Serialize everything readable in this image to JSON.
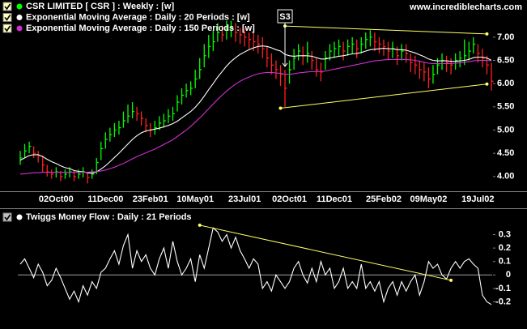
{
  "watermark": "www.incrediblecharts.com",
  "chart_data": [
    {
      "type": "ohlc",
      "categories": [
        null,
        null,
        null,
        null,
        null,
        null,
        null,
        null,
        "02Oct00",
        null,
        null,
        null,
        null,
        null,
        null,
        null,
        null,
        null,
        null,
        "11Dec00",
        null,
        null,
        null,
        null,
        null,
        null,
        null,
        null,
        null,
        "23Feb01",
        null,
        null,
        null,
        null,
        null,
        null,
        null,
        null,
        null,
        "10May01",
        null,
        null,
        null,
        null,
        null,
        null,
        null,
        null,
        null,
        null,
        "23Jul01",
        null,
        null,
        null,
        null,
        null,
        null,
        null,
        null,
        null,
        "02Oct01",
        null,
        null,
        null,
        null,
        null,
        null,
        null,
        null,
        null,
        "11Dec01",
        null,
        null,
        null,
        null,
        null,
        null,
        null,
        null,
        null,
        null,
        "25Feb02",
        null,
        null,
        null,
        null,
        null,
        null,
        null,
        null,
        null,
        "09May02",
        null,
        null,
        null,
        null,
        null,
        null,
        null,
        null,
        null,
        null,
        "19Jul02",
        null,
        null,
        null
      ],
      "ylim": [
        3.7,
        7.8
      ],
      "yticks": [
        {
          "value": 4,
          "label": "4.00"
        },
        {
          "value": 4.5,
          "label": "4.50"
        },
        {
          "value": 5,
          "label": "5.00"
        },
        {
          "value": 5.5,
          "label": "5.50"
        },
        {
          "value": 6,
          "label": "6.00"
        },
        {
          "value": 6.5,
          "label": "6.50"
        },
        {
          "value": 7,
          "label": "7.00"
        }
      ],
      "up_color": "#00ff00",
      "down_color": "#ff2020",
      "series": [
        {
          "name": "CSR LIMITED  [ CSR ] : Weekly : [w]",
          "color": "#00ff00",
          "high": [
            4.55,
            4.7,
            4.75,
            4.65,
            4.55,
            4.45,
            4.25,
            4.15,
            4.2,
            4.12,
            4.15,
            4.2,
            4.12,
            4.15,
            4.2,
            4.1,
            4.15,
            4.4,
            4.75,
            4.95,
            5.05,
            5.15,
            5.2,
            5.4,
            5.55,
            5.6,
            5.5,
            5.4,
            5.25,
            5.15,
            5.2,
            5.3,
            5.35,
            5.45,
            5.5,
            5.75,
            5.9,
            6.0,
            6.05,
            6.3,
            6.55,
            6.85,
            7.05,
            7.15,
            7.3,
            7.25,
            7.35,
            7.35,
            7.3,
            7.2,
            7.2,
            7.1,
            7.1,
            7.05,
            7.0,
            6.8,
            6.65,
            6.5,
            6.4,
            6.3,
            6.5,
            6.75,
            6.85,
            6.8,
            6.9,
            6.7,
            6.55,
            6.45,
            6.7,
            6.85,
            6.9,
            6.95,
            6.9,
            6.95,
            7.0,
            6.95,
            7.0,
            7.1,
            7.15,
            7.1,
            7.0,
            6.95,
            6.9,
            6.9,
            6.8,
            6.85,
            6.85,
            6.65,
            6.6,
            6.5,
            6.45,
            6.35,
            6.4,
            6.55,
            6.65,
            6.6,
            6.55,
            6.65,
            6.7,
            6.95,
            6.9,
            7.0,
            6.85,
            6.75,
            6.6,
            6.45
          ],
          "low": [
            4.25,
            4.4,
            4.5,
            4.4,
            4.3,
            4.1,
            4.0,
            3.95,
            3.98,
            3.9,
            3.95,
            3.98,
            3.9,
            3.95,
            3.98,
            3.85,
            3.95,
            4.05,
            4.35,
            4.6,
            4.75,
            4.85,
            4.9,
            5.05,
            5.15,
            5.25,
            5.2,
            5.1,
            4.95,
            4.85,
            4.9,
            5.0,
            5.05,
            5.15,
            5.2,
            5.4,
            5.55,
            5.7,
            5.75,
            5.9,
            6.1,
            6.35,
            6.55,
            6.7,
            6.9,
            6.9,
            6.95,
            7.0,
            6.9,
            6.85,
            6.8,
            6.75,
            6.7,
            6.65,
            6.55,
            6.35,
            6.2,
            6.1,
            5.95,
            5.5,
            6.0,
            6.3,
            6.5,
            6.4,
            6.45,
            6.3,
            6.15,
            6.05,
            6.3,
            6.5,
            6.55,
            6.6,
            6.5,
            6.6,
            6.65,
            6.55,
            6.65,
            6.75,
            6.8,
            6.7,
            6.65,
            6.6,
            6.5,
            6.55,
            6.4,
            6.5,
            6.45,
            6.25,
            6.2,
            6.1,
            6.05,
            5.9,
            6.0,
            6.2,
            6.3,
            6.25,
            6.2,
            6.3,
            6.35,
            6.4,
            6.5,
            6.65,
            6.45,
            6.35,
            6.2,
            5.85
          ],
          "close": [
            4.4,
            4.55,
            4.65,
            4.5,
            4.45,
            4.25,
            4.1,
            4.05,
            4.1,
            4.0,
            4.05,
            4.1,
            4.0,
            4.05,
            4.1,
            3.98,
            4.05,
            4.3,
            4.6,
            4.8,
            4.9,
            5.0,
            5.05,
            5.2,
            5.3,
            5.4,
            5.35,
            5.25,
            5.1,
            5.0,
            5.05,
            5.15,
            5.2,
            5.3,
            5.35,
            5.6,
            5.75,
            5.85,
            5.9,
            6.1,
            6.3,
            6.6,
            6.8,
            6.9,
            7.1,
            7.05,
            7.15,
            7.2,
            7.1,
            7.05,
            7.0,
            6.95,
            6.9,
            6.85,
            6.75,
            6.55,
            6.4,
            6.3,
            6.2,
            5.9,
            6.3,
            6.55,
            6.7,
            6.6,
            6.65,
            6.5,
            6.3,
            6.25,
            6.55,
            6.7,
            6.75,
            6.8,
            6.7,
            6.8,
            6.85,
            6.75,
            6.85,
            6.95,
            7.0,
            6.9,
            6.85,
            6.8,
            6.7,
            6.75,
            6.6,
            6.7,
            6.65,
            6.45,
            6.4,
            6.3,
            6.25,
            6.1,
            6.2,
            6.4,
            6.5,
            6.45,
            6.4,
            6.5,
            6.55,
            6.6,
            6.7,
            6.85,
            6.65,
            6.55,
            6.4,
            6.05
          ]
        },
        {
          "name": "Exponential Moving Average : Daily : 20 Periods : [w]",
          "color": "#ffffff",
          "values": [
            4.35,
            4.4,
            4.45,
            4.47,
            4.47,
            4.43,
            4.37,
            4.32,
            4.28,
            4.23,
            4.19,
            4.17,
            4.13,
            4.11,
            4.1,
            4.08,
            4.07,
            4.1,
            4.16,
            4.23,
            4.32,
            4.41,
            4.5,
            4.6,
            4.7,
            4.8,
            4.88,
            4.94,
            4.98,
            5.0,
            5.02,
            5.04,
            5.07,
            5.1,
            5.14,
            5.19,
            5.26,
            5.33,
            5.4,
            5.49,
            5.6,
            5.73,
            5.87,
            6.0,
            6.14,
            6.26,
            6.38,
            6.48,
            6.56,
            6.63,
            6.68,
            6.73,
            6.77,
            6.8,
            6.81,
            6.8,
            6.77,
            6.73,
            6.7,
            6.63,
            6.6,
            6.59,
            6.6,
            6.6,
            6.6,
            6.59,
            6.56,
            6.53,
            6.53,
            6.55,
            6.57,
            6.59,
            6.6,
            6.62,
            6.64,
            6.65,
            6.67,
            6.7,
            6.73,
            6.74,
            6.75,
            6.76,
            6.75,
            6.75,
            6.73,
            6.73,
            6.72,
            6.69,
            6.66,
            6.62,
            6.58,
            6.53,
            6.5,
            6.49,
            6.49,
            6.49,
            6.48,
            6.48,
            6.49,
            6.5,
            6.52,
            6.56,
            6.57,
            6.57,
            6.55,
            6.5
          ]
        },
        {
          "name": "Exponential Moving Average : Daily : 150 Periods : [w]",
          "color": "#d030d0",
          "values": [
            4.05,
            4.06,
            4.07,
            4.08,
            4.08,
            4.09,
            4.09,
            4.09,
            4.09,
            4.09,
            4.09,
            4.09,
            4.09,
            4.09,
            4.09,
            4.09,
            4.1,
            4.1,
            4.12,
            4.14,
            4.17,
            4.2,
            4.24,
            4.28,
            4.33,
            4.38,
            4.43,
            4.47,
            4.51,
            4.55,
            4.59,
            4.64,
            4.69,
            4.74,
            4.79,
            4.86,
            4.93,
            5.0,
            5.08,
            5.17,
            5.26,
            5.36,
            5.46,
            5.56,
            5.66,
            5.75,
            5.84,
            5.92,
            5.99,
            6.05,
            6.1,
            6.14,
            6.18,
            6.21,
            6.23,
            6.24,
            6.24,
            6.23,
            6.22,
            6.2,
            6.2,
            6.21,
            6.23,
            6.24,
            6.25,
            6.26,
            6.26,
            6.26,
            6.27,
            6.29,
            6.31,
            6.33,
            6.35,
            6.37,
            6.39,
            6.41,
            6.43,
            6.45,
            6.47,
            6.49,
            6.5,
            6.51,
            6.52,
            6.52,
            6.52,
            6.52,
            6.52,
            6.51,
            6.5,
            6.48,
            6.46,
            6.44,
            6.43,
            6.43,
            6.43,
            6.43,
            6.43,
            6.44,
            6.45,
            6.46,
            6.47,
            6.49,
            6.5,
            6.5,
            6.5,
            6.49
          ]
        }
      ],
      "annotations": [
        {
          "label": "S3",
          "index": 59,
          "value": 7.45
        }
      ],
      "trendline_color": "#ffff66",
      "trendlines": [
        {
          "x": [
            59,
            104
          ],
          "values": [
            7.24,
            7.07
          ]
        },
        {
          "x": [
            58,
            104
          ],
          "values": [
            5.47,
            5.99
          ]
        }
      ]
    },
    {
      "type": "line",
      "ylim": [
        -0.39,
        0.49
      ],
      "yticks": [
        0.3,
        0.2,
        0.1,
        0,
        -0.1,
        -0.2
      ],
      "zero_line": true,
      "series": [
        {
          "name": "Twiggs Money Flow : Daily : 21 Periods",
          "color": "#ffffff",
          "values": [
            0.08,
            0.12,
            0.05,
            -0.02,
            0.08,
            0.02,
            -0.08,
            -0.04,
            0.05,
            -0.02,
            -0.1,
            -0.18,
            -0.12,
            -0.2,
            -0.08,
            -0.15,
            -0.05,
            -0.1,
            0.02,
            0.05,
            0.12,
            0.18,
            0.08,
            0.22,
            0.3,
            0.05,
            0.18,
            0.1,
            0.15,
            0.05,
            0.0,
            0.12,
            0.2,
            0.05,
            0.25,
            0.1,
            0.0,
            0.05,
            0.12,
            -0.05,
            0.15,
            0.05,
            0.2,
            0.35,
            0.32,
            0.25,
            0.3,
            0.2,
            0.28,
            0.18,
            0.12,
            0.05,
            0.12,
            0.08,
            -0.1,
            -0.05,
            -0.12,
            0.0,
            -0.05,
            -0.1,
            -0.05,
            0.05,
            0.1,
            0.0,
            -0.06,
            0.05,
            -0.05,
            0.1,
            0.0,
            0.05,
            -0.1,
            -0.05,
            0.05,
            -0.1,
            -0.05,
            -0.1,
            0.08,
            -0.1,
            -0.05,
            -0.12,
            -0.05,
            -0.2,
            -0.1,
            -0.05,
            -0.15,
            -0.05,
            -0.12,
            -0.05,
            0.0,
            -0.15,
            -0.05,
            0.1,
            0.05,
            0.08,
            0.0,
            -0.03,
            0.05,
            0.1,
            0.05,
            0.1,
            0.12,
            0.08,
            0.05,
            -0.15,
            -0.2,
            -0.22
          ]
        }
      ],
      "trendline_color": "#ffff66",
      "trendlines": [
        {
          "x": [
            40,
            96
          ],
          "values": [
            0.37,
            -0.04
          ]
        }
      ]
    }
  ]
}
